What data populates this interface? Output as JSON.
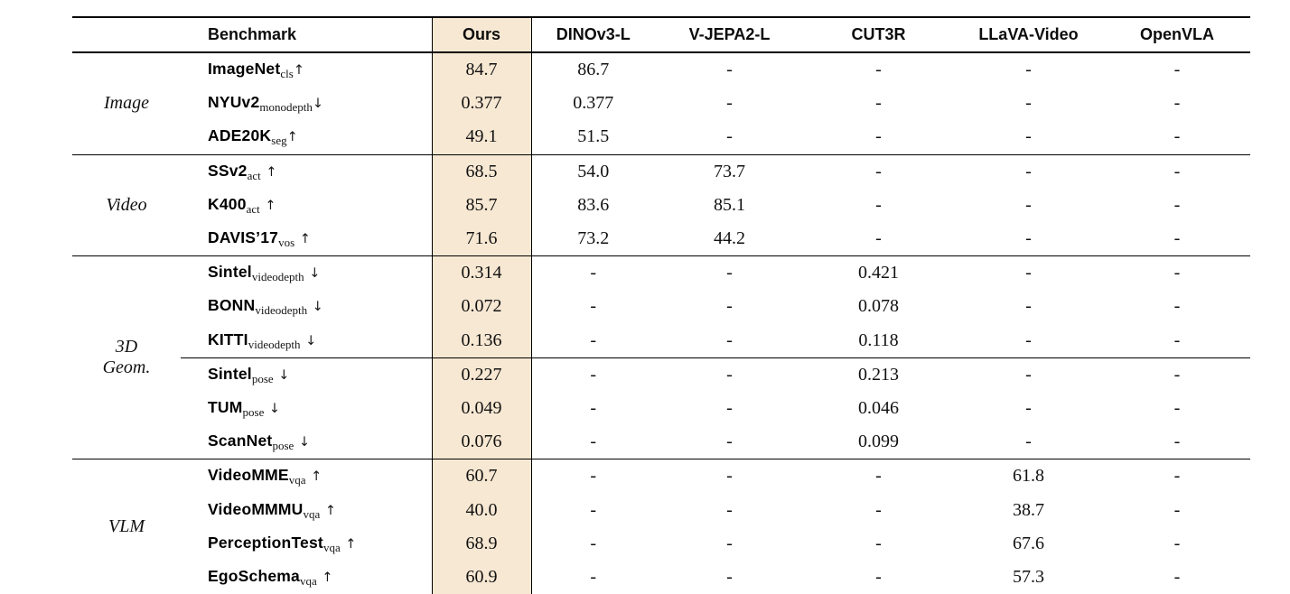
{
  "table": {
    "header": {
      "benchmark": "Benchmark",
      "models": [
        "Ours",
        "DINOv3-L",
        "V-JEPA2-L",
        "CUT3R",
        "LLaVA-Video",
        "OpenVLA"
      ]
    },
    "highlight_column": "Ours",
    "colors": {
      "highlight_bg": "#f7e8d3",
      "rule": "#000000",
      "text": "#111111"
    },
    "groups": [
      {
        "label_lines": [
          "Image"
        ],
        "rows": [
          {
            "name": "ImageNet",
            "sub": "cls",
            "arrow": "↑",
            "tight": true,
            "values": [
              "84.7",
              "86.7",
              "-",
              "-",
              "-",
              "-"
            ]
          },
          {
            "name": "NYUv2",
            "sub": "monodepth",
            "arrow": "↓",
            "tight": true,
            "values": [
              "0.377",
              "0.377",
              "-",
              "-",
              "-",
              "-"
            ]
          },
          {
            "name": "ADE20K",
            "sub": "seg",
            "arrow": "↑",
            "tight": true,
            "values": [
              "49.1",
              "51.5",
              "-",
              "-",
              "-",
              "-"
            ]
          }
        ]
      },
      {
        "label_lines": [
          "Video"
        ],
        "rows": [
          {
            "name": "SSv2",
            "sub": "act",
            "arrow": "↑",
            "tight": false,
            "values": [
              "68.5",
              "54.0",
              "73.7",
              "-",
              "-",
              "-"
            ]
          },
          {
            "name": "K400",
            "sub": "act",
            "arrow": "↑",
            "tight": false,
            "values": [
              "85.7",
              "83.6",
              "85.1",
              "-",
              "-",
              "-"
            ]
          },
          {
            "name": "DAVIS’17",
            "sub": "vos",
            "arrow": "↑",
            "tight": false,
            "values": [
              "71.6",
              "73.2",
              "44.2",
              "-",
              "-",
              "-"
            ]
          }
        ]
      },
      {
        "label_lines": [
          "3D",
          "Geom."
        ],
        "rows": [
          {
            "name": "Sintel",
            "sub": "videodepth",
            "arrow": "↓",
            "tight": false,
            "values": [
              "0.314",
              "-",
              "-",
              "0.421",
              "-",
              "-"
            ]
          },
          {
            "name": "BONN",
            "sub": "videodepth",
            "arrow": "↓",
            "tight": false,
            "values": [
              "0.072",
              "-",
              "-",
              "0.078",
              "-",
              "-"
            ]
          },
          {
            "name": "KITTI",
            "sub": "videodepth",
            "arrow": "↓",
            "tight": false,
            "values": [
              "0.136",
              "-",
              "-",
              "0.118",
              "-",
              "-"
            ]
          },
          {
            "name": "Sintel",
            "sub": "pose",
            "arrow": "↓",
            "tight": false,
            "cline_before": true,
            "values": [
              "0.227",
              "-",
              "-",
              "0.213",
              "-",
              "-"
            ]
          },
          {
            "name": "TUM",
            "sub": "pose",
            "arrow": "↓",
            "tight": false,
            "values": [
              "0.049",
              "-",
              "-",
              "0.046",
              "-",
              "-"
            ]
          },
          {
            "name": "ScanNet",
            "sub": "pose",
            "arrow": "↓",
            "tight": false,
            "values": [
              "0.076",
              "-",
              "-",
              "0.099",
              "-",
              "-"
            ]
          }
        ]
      },
      {
        "label_lines": [
          "VLM"
        ],
        "rows": [
          {
            "name": "VideoMME",
            "sub": "vqa",
            "arrow": "↑",
            "tight": false,
            "values": [
              "60.7",
              "-",
              "-",
              "-",
              "61.8",
              "-"
            ]
          },
          {
            "name": "VideoMMMU",
            "sub": "vqa",
            "arrow": "↑",
            "tight": false,
            "values": [
              "40.0",
              "-",
              "-",
              "-",
              "38.7",
              "-"
            ]
          },
          {
            "name": "PerceptionTest",
            "sub": "vqa",
            "arrow": "↑",
            "tight": false,
            "values": [
              "68.9",
              "-",
              "-",
              "-",
              "67.6",
              "-"
            ]
          },
          {
            "name": "EgoSchema",
            "sub": "vqa",
            "arrow": "↑",
            "tight": false,
            "values": [
              "60.9",
              "-",
              "-",
              "-",
              "57.3",
              "-"
            ]
          }
        ]
      }
    ]
  }
}
